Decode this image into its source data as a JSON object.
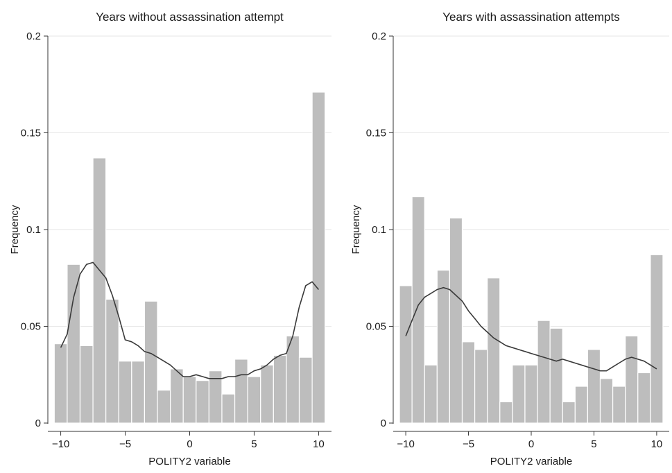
{
  "colors": {
    "bar_fill": "#bdbdbd",
    "bar_stroke": "#ffffff",
    "density_line": "#3a3a3a",
    "grid": "#e6e6e6",
    "axis": "#333333"
  },
  "chart_data": [
    {
      "type": "bar",
      "title": "Years without assassination attempt",
      "xlabel": "POLITY2 variable",
      "ylabel": "Frequency",
      "xlim": [
        -11,
        11
      ],
      "ylim": [
        0,
        0.2
      ],
      "xticks": [
        -10,
        -5,
        0,
        5,
        10
      ],
      "xtick_labels": [
        "−10",
        "−5",
        "0",
        "5",
        "10"
      ],
      "yticks": [
        0,
        0.05,
        0.1,
        0.15,
        0.2
      ],
      "ytick_labels": [
        "0",
        "0.05",
        "0.1",
        "0.15",
        "0.2"
      ],
      "grid": true,
      "bin_width": 1,
      "bins": [
        {
          "x": -10,
          "y": 0.041
        },
        {
          "x": -9,
          "y": 0.082
        },
        {
          "x": -8,
          "y": 0.04
        },
        {
          "x": -7,
          "y": 0.137
        },
        {
          "x": -6,
          "y": 0.064
        },
        {
          "x": -5,
          "y": 0.032
        },
        {
          "x": -4,
          "y": 0.032
        },
        {
          "x": -3,
          "y": 0.063
        },
        {
          "x": -2,
          "y": 0.017
        },
        {
          "x": -1,
          "y": 0.028
        },
        {
          "x": 0,
          "y": 0.024
        },
        {
          "x": 1,
          "y": 0.022
        },
        {
          "x": 2,
          "y": 0.027
        },
        {
          "x": 3,
          "y": 0.015
        },
        {
          "x": 4,
          "y": 0.033
        },
        {
          "x": 5,
          "y": 0.024
        },
        {
          "x": 6,
          "y": 0.03
        },
        {
          "x": 7,
          "y": 0.035
        },
        {
          "x": 8,
          "y": 0.045
        },
        {
          "x": 9,
          "y": 0.034
        },
        {
          "x": 10,
          "y": 0.171
        }
      ],
      "density": [
        [
          -10,
          0.039
        ],
        [
          -9.5,
          0.046
        ],
        [
          -9,
          0.065
        ],
        [
          -8.5,
          0.077
        ],
        [
          -8,
          0.082
        ],
        [
          -7.5,
          0.083
        ],
        [
          -7,
          0.079
        ],
        [
          -6.5,
          0.075
        ],
        [
          -6,
          0.066
        ],
        [
          -5.5,
          0.055
        ],
        [
          -5,
          0.043
        ],
        [
          -4.5,
          0.042
        ],
        [
          -4,
          0.04
        ],
        [
          -3.5,
          0.037
        ],
        [
          -3,
          0.036
        ],
        [
          -2.5,
          0.034
        ],
        [
          -2,
          0.032
        ],
        [
          -1.5,
          0.03
        ],
        [
          -1,
          0.027
        ],
        [
          -0.5,
          0.024
        ],
        [
          0,
          0.024
        ],
        [
          0.5,
          0.025
        ],
        [
          1,
          0.024
        ],
        [
          1.5,
          0.023
        ],
        [
          2,
          0.023
        ],
        [
          2.5,
          0.023
        ],
        [
          3,
          0.024
        ],
        [
          3.5,
          0.024
        ],
        [
          4,
          0.025
        ],
        [
          4.5,
          0.025
        ],
        [
          5,
          0.027
        ],
        [
          5.5,
          0.028
        ],
        [
          6,
          0.03
        ],
        [
          6.5,
          0.033
        ],
        [
          7,
          0.035
        ],
        [
          7.5,
          0.036
        ],
        [
          8,
          0.045
        ],
        [
          8.5,
          0.06
        ],
        [
          9,
          0.071
        ],
        [
          9.5,
          0.073
        ],
        [
          10,
          0.069
        ]
      ]
    },
    {
      "type": "bar",
      "title": "Years with assassination attempts",
      "xlabel": "POLITY2 variable",
      "ylabel": "Frequency",
      "xlim": [
        -11,
        11
      ],
      "ylim": [
        0,
        0.2
      ],
      "xticks": [
        -10,
        -5,
        0,
        5,
        10
      ],
      "xtick_labels": [
        "−10",
        "−5",
        "0",
        "5",
        "10"
      ],
      "yticks": [
        0,
        0.05,
        0.1,
        0.15,
        0.2
      ],
      "ytick_labels": [
        "0",
        "0.05",
        "0.1",
        "0.15",
        "0.2"
      ],
      "grid": true,
      "bin_width": 1,
      "bins": [
        {
          "x": -10,
          "y": 0.071
        },
        {
          "x": -9,
          "y": 0.117
        },
        {
          "x": -8,
          "y": 0.03
        },
        {
          "x": -7,
          "y": 0.079
        },
        {
          "x": -6,
          "y": 0.106
        },
        {
          "x": -5,
          "y": 0.042
        },
        {
          "x": -4,
          "y": 0.038
        },
        {
          "x": -3,
          "y": 0.075
        },
        {
          "x": -2,
          "y": 0.011
        },
        {
          "x": -1,
          "y": 0.03
        },
        {
          "x": 0,
          "y": 0.03
        },
        {
          "x": 1,
          "y": 0.053
        },
        {
          "x": 2,
          "y": 0.049
        },
        {
          "x": 3,
          "y": 0.011
        },
        {
          "x": 4,
          "y": 0.019
        },
        {
          "x": 5,
          "y": 0.038
        },
        {
          "x": 6,
          "y": 0.023
        },
        {
          "x": 7,
          "y": 0.019
        },
        {
          "x": 8,
          "y": 0.045
        },
        {
          "x": 9,
          "y": 0.026
        },
        {
          "x": 10,
          "y": 0.087
        }
      ],
      "density": [
        [
          -10,
          0.045
        ],
        [
          -9.5,
          0.053
        ],
        [
          -9,
          0.061
        ],
        [
          -8.5,
          0.065
        ],
        [
          -8,
          0.067
        ],
        [
          -7.5,
          0.069
        ],
        [
          -7,
          0.07
        ],
        [
          -6.5,
          0.069
        ],
        [
          -6,
          0.066
        ],
        [
          -5.5,
          0.063
        ],
        [
          -5,
          0.058
        ],
        [
          -4.5,
          0.054
        ],
        [
          -4,
          0.05
        ],
        [
          -3.5,
          0.047
        ],
        [
          -3,
          0.044
        ],
        [
          -2.5,
          0.042
        ],
        [
          -2,
          0.04
        ],
        [
          -1.5,
          0.039
        ],
        [
          -1,
          0.038
        ],
        [
          -0.5,
          0.037
        ],
        [
          0,
          0.036
        ],
        [
          0.5,
          0.035
        ],
        [
          1,
          0.034
        ],
        [
          1.5,
          0.033
        ],
        [
          2,
          0.032
        ],
        [
          2.5,
          0.033
        ],
        [
          3,
          0.032
        ],
        [
          3.5,
          0.031
        ],
        [
          4,
          0.03
        ],
        [
          4.5,
          0.029
        ],
        [
          5,
          0.028
        ],
        [
          5.5,
          0.027
        ],
        [
          6,
          0.027
        ],
        [
          6.5,
          0.029
        ],
        [
          7,
          0.031
        ],
        [
          7.5,
          0.033
        ],
        [
          8,
          0.034
        ],
        [
          8.5,
          0.033
        ],
        [
          9,
          0.032
        ],
        [
          9.5,
          0.03
        ],
        [
          10,
          0.028
        ]
      ]
    }
  ]
}
